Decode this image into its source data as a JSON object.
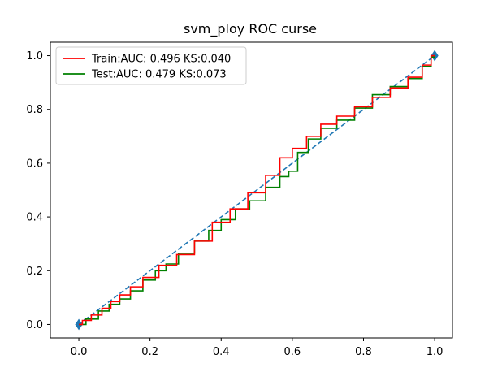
{
  "chart_data": {
    "type": "line",
    "title": "svm_ploy ROC curse",
    "xlabel": "",
    "ylabel": "",
    "xlim": [
      -0.08,
      1.05
    ],
    "ylim": [
      -0.05,
      1.05
    ],
    "xticks": [
      0.0,
      0.2,
      0.4,
      0.6,
      0.8,
      1.0
    ],
    "yticks": [
      0.0,
      0.2,
      0.4,
      0.6,
      0.8,
      1.0
    ],
    "xtick_labels": [
      "0.0",
      "0.2",
      "0.4",
      "0.6",
      "0.8",
      "1.0"
    ],
    "ytick_labels": [
      "0.0",
      "0.2",
      "0.4",
      "0.6",
      "0.8",
      "1.0"
    ],
    "legend_position": "top-left",
    "series": [
      {
        "name": "Train:AUC: 0.496 KS:0.040",
        "color": "#ff0000",
        "style": "step",
        "points": [
          [
            0.0,
            0.0
          ],
          [
            0.02,
            0.015
          ],
          [
            0.05,
            0.035
          ],
          [
            0.08,
            0.06
          ],
          [
            0.1,
            0.085
          ],
          [
            0.13,
            0.11
          ],
          [
            0.16,
            0.14
          ],
          [
            0.2,
            0.175
          ],
          [
            0.25,
            0.22
          ],
          [
            0.3,
            0.26
          ],
          [
            0.35,
            0.31
          ],
          [
            0.4,
            0.38
          ],
          [
            0.45,
            0.43
          ],
          [
            0.5,
            0.49
          ],
          [
            0.55,
            0.555
          ],
          [
            0.58,
            0.62
          ],
          [
            0.62,
            0.655
          ],
          [
            0.66,
            0.7
          ],
          [
            0.7,
            0.745
          ],
          [
            0.75,
            0.775
          ],
          [
            0.8,
            0.81
          ],
          [
            0.85,
            0.845
          ],
          [
            0.9,
            0.88
          ],
          [
            0.95,
            0.92
          ],
          [
            0.98,
            0.965
          ],
          [
            1.0,
            1.0
          ]
        ]
      },
      {
        "name": "Test:AUC: 0.479 KS:0.073",
        "color": "#008000",
        "style": "step",
        "points": [
          [
            0.0,
            0.0
          ],
          [
            0.04,
            0.02
          ],
          [
            0.07,
            0.05
          ],
          [
            0.1,
            0.075
          ],
          [
            0.13,
            0.095
          ],
          [
            0.16,
            0.125
          ],
          [
            0.2,
            0.165
          ],
          [
            0.23,
            0.2
          ],
          [
            0.26,
            0.225
          ],
          [
            0.3,
            0.265
          ],
          [
            0.35,
            0.31
          ],
          [
            0.38,
            0.35
          ],
          [
            0.42,
            0.39
          ],
          [
            0.46,
            0.43
          ],
          [
            0.5,
            0.46
          ],
          [
            0.55,
            0.51
          ],
          [
            0.58,
            0.55
          ],
          [
            0.6,
            0.57
          ],
          [
            0.63,
            0.64
          ],
          [
            0.66,
            0.69
          ],
          [
            0.7,
            0.73
          ],
          [
            0.75,
            0.76
          ],
          [
            0.8,
            0.805
          ],
          [
            0.85,
            0.855
          ],
          [
            0.9,
            0.885
          ],
          [
            0.95,
            0.915
          ],
          [
            0.98,
            0.96
          ],
          [
            1.0,
            0.995
          ]
        ]
      },
      {
        "name": "",
        "color": "#1f77b4",
        "style": "dashed",
        "markers": "diamond",
        "points": [
          [
            0.0,
            0.0
          ],
          [
            1.0,
            1.0
          ]
        ]
      }
    ]
  }
}
